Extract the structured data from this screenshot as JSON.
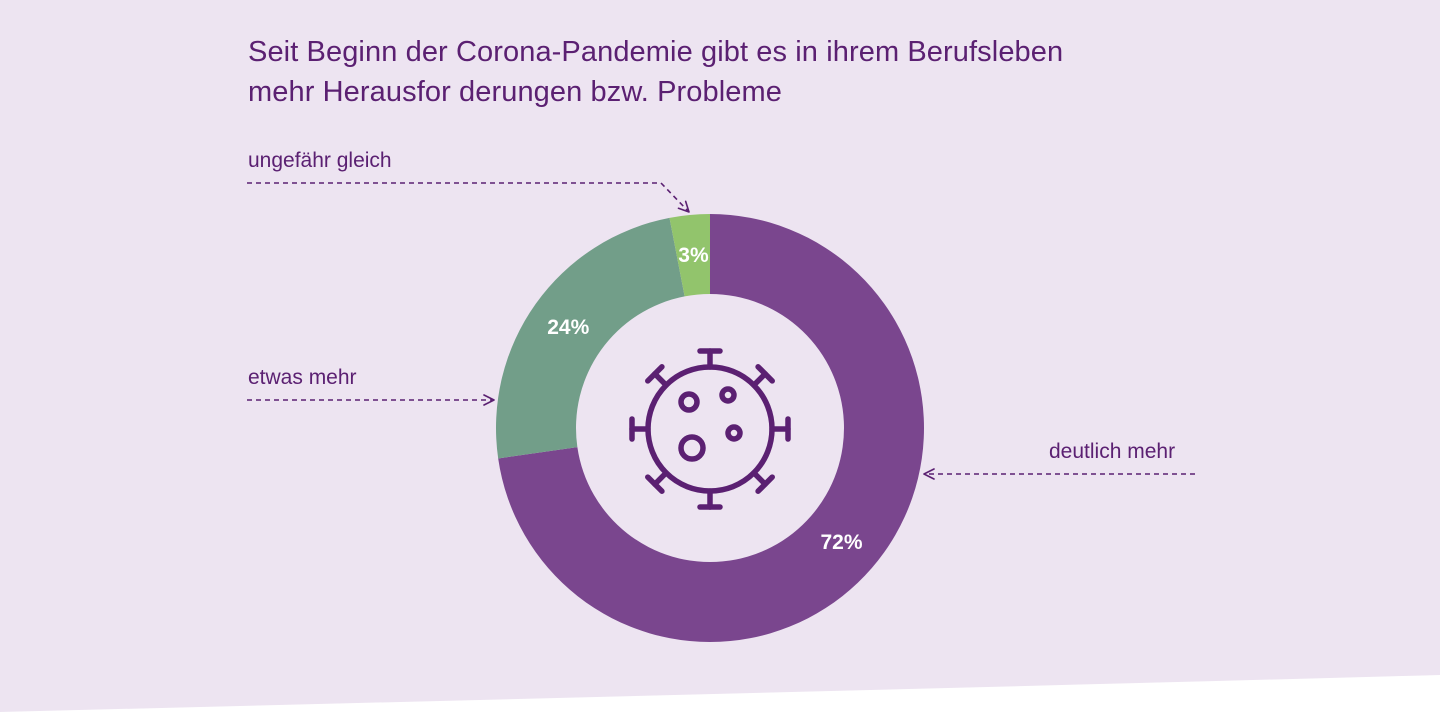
{
  "colors": {
    "background": "#ede4f1",
    "bottom_band": "#ffffff",
    "text": "#5b2072",
    "deutlich_mehr": "#7a468e",
    "etwas_mehr": "#729e89",
    "ungefaehr_gleich": "#92c46c",
    "icon": "#5b2072"
  },
  "chart_data": {
    "type": "pie",
    "title": "Seit Beginn der Corona-Pandemie gibt es in ihrem Berufsleben mehr Herausfor derungen bzw. Probleme",
    "title_lines": [
      "Seit Beginn der Corona-Pandemie gibt es in ihrem Berufsleben",
      "mehr Herausfor derungen bzw. Probleme"
    ],
    "unit": "%",
    "slices": [
      {
        "name": "deutlich mehr",
        "value": 72,
        "label": "72%"
      },
      {
        "name": "etwas mehr",
        "value": 24,
        "label": "24%"
      },
      {
        "name": "ungefähr gleich",
        "value": 3,
        "label": "3%"
      }
    ],
    "center_icon": "virus-icon"
  }
}
